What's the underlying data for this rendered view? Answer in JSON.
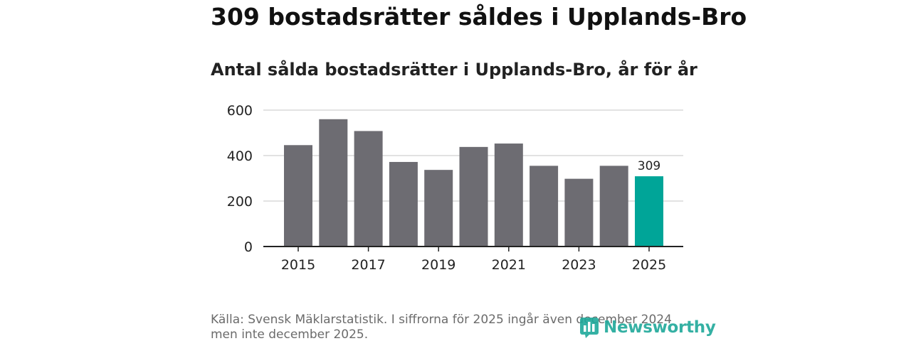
{
  "title": "309 bostadsrätter såldes i Upplands-Bro",
  "subtitle": "Antal sålda bostadsrätter i Upplands-Bro, år för år",
  "source": "Källa: Svensk Mäklarstatistik. I siffrorna för 2025 ingår även december 2024 men inte december 2025.",
  "logo": "Newsworthy",
  "colors": {
    "bar": "#6d6c72",
    "highlight": "#00a598",
    "grid": "#d9d9d9",
    "axis": "#222222"
  },
  "chart_data": {
    "type": "bar",
    "categories": [
      "2015",
      "2016",
      "2017",
      "2018",
      "2019",
      "2020",
      "2021",
      "2022",
      "2023",
      "2024",
      "2025"
    ],
    "values": [
      446,
      560,
      508,
      372,
      337,
      438,
      453,
      355,
      298,
      355,
      309
    ],
    "highlight_index": 10,
    "highlight_label": "309",
    "x_tick_labels": [
      "2015",
      "2017",
      "2019",
      "2021",
      "2023",
      "2025"
    ],
    "y_ticks": [
      0,
      200,
      400,
      600
    ],
    "y_tick_labels": [
      "0",
      "200",
      "400",
      "600"
    ],
    "ylim": [
      0,
      600
    ],
    "grid": true,
    "xlabel": "",
    "ylabel": ""
  }
}
